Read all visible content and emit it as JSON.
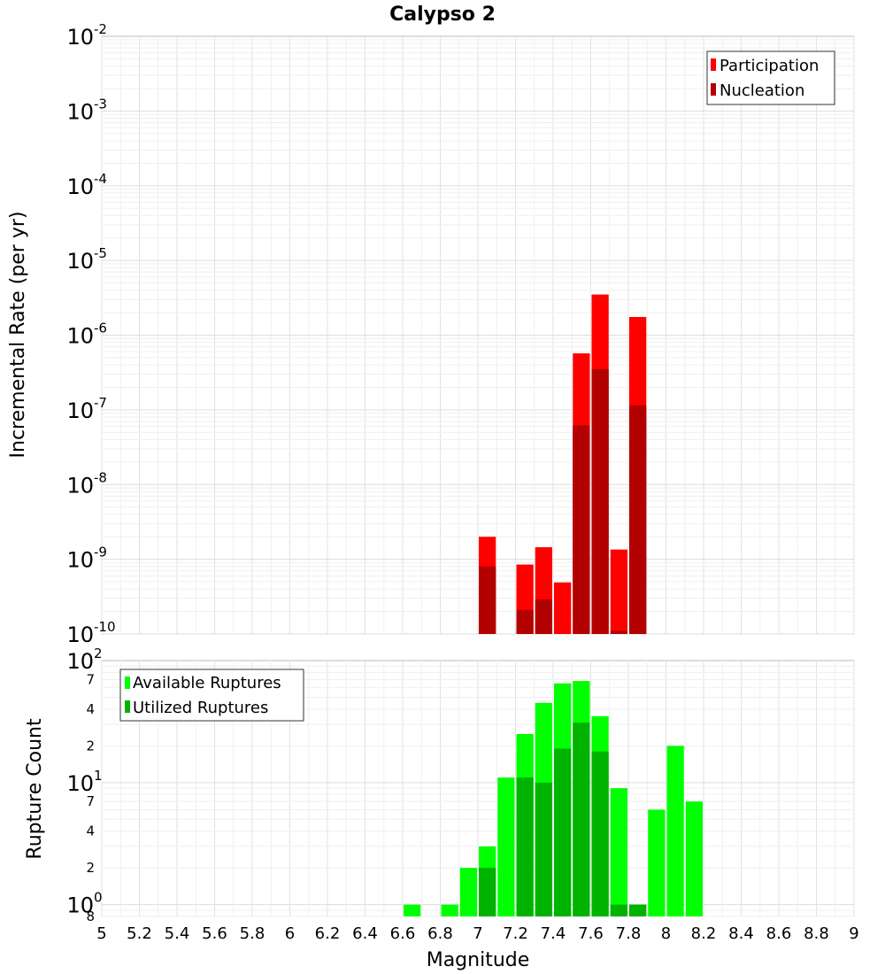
{
  "title": "Calypso 2",
  "xlabel": "Magnitude",
  "chart_data": [
    {
      "type": "bar",
      "title": "Calypso 2",
      "xlabel": "Magnitude",
      "ylabel": "Incremental Rate (per yr)",
      "yscale": "log",
      "ylim": [
        1e-10,
        0.01
      ],
      "xlim": [
        5,
        9
      ],
      "legend_position": "top-right",
      "x": [
        7.05,
        7.25,
        7.35,
        7.45,
        7.55,
        7.65,
        7.75,
        7.85
      ],
      "series": [
        {
          "name": "Participation",
          "color": "#ff0000",
          "values": [
            2e-09,
            8.5e-10,
            1.45e-09,
            4.9e-10,
            5.7e-07,
            3.5e-06,
            1.35e-09,
            1.75e-06
          ]
        },
        {
          "name": "Nucleation",
          "color": "#b30000",
          "values": [
            8e-10,
            2.1e-10,
            2.9e-10,
            null,
            6.2e-08,
            3.5e-07,
            1.1e-10,
            1.15e-07
          ]
        }
      ]
    },
    {
      "type": "bar",
      "xlabel": "Magnitude",
      "ylabel": "Rupture Count",
      "yscale": "log",
      "ylim": [
        0.8,
        100
      ],
      "xlim": [
        5,
        9
      ],
      "legend_position": "top-left",
      "x": [
        6.65,
        6.85,
        6.95,
        7.05,
        7.15,
        7.25,
        7.35,
        7.45,
        7.55,
        7.65,
        7.75,
        7.85,
        7.95,
        8.05,
        8.15
      ],
      "series": [
        {
          "name": "Available Ruptures",
          "color": "#00ff00",
          "values": [
            1,
            1,
            2,
            3,
            11,
            25,
            45,
            65,
            68,
            35,
            9,
            1,
            6,
            20,
            7
          ]
        },
        {
          "name": "Utilized Ruptures",
          "color": "#00b300",
          "values": [
            null,
            null,
            null,
            2,
            null,
            11,
            10,
            19,
            31,
            18,
            1,
            1,
            null,
            null,
            null
          ]
        }
      ]
    }
  ],
  "axes": {
    "top_y_ticks": [
      {
        "base": "10",
        "exp": "-2"
      },
      {
        "base": "10",
        "exp": "-3"
      },
      {
        "base": "10",
        "exp": "-4"
      },
      {
        "base": "10",
        "exp": "-5"
      },
      {
        "base": "10",
        "exp": "-6"
      },
      {
        "base": "10",
        "exp": "-7"
      },
      {
        "base": "10",
        "exp": "-8"
      },
      {
        "base": "10",
        "exp": "-9"
      },
      {
        "base": "10",
        "exp": "-10"
      }
    ],
    "bottom_y_major": [
      {
        "base": "10",
        "exp": "2"
      },
      {
        "base": "10",
        "exp": "1"
      },
      {
        "base": "10",
        "exp": "0"
      }
    ],
    "bottom_y_minor": [
      "7",
      "4",
      "2",
      "7",
      "4",
      "2",
      "8"
    ],
    "x_ticks": [
      "5",
      "5.2",
      "5.4",
      "5.6",
      "5.8",
      "6",
      "6.2",
      "6.4",
      "6.6",
      "6.8",
      "7",
      "7.2",
      "7.4",
      "7.6",
      "7.8",
      "8",
      "8.2",
      "8.4",
      "8.6",
      "8.8",
      "9"
    ]
  }
}
